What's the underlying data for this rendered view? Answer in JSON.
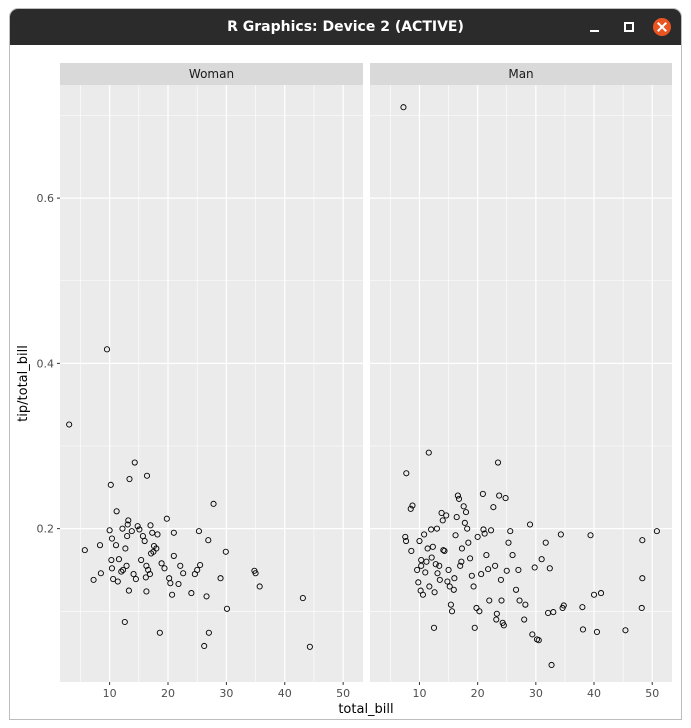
{
  "window": {
    "title": "R Graphics: Device 2 (ACTIVE)"
  },
  "chart_data": {
    "type": "scatter",
    "xlabel": "total_bill",
    "ylabel": "tip/total_bill",
    "xlim": [
      1.5,
      53.4
    ],
    "ylim": [
      0.0144,
      0.7369
    ],
    "x_ticks": [
      10,
      20,
      30,
      40,
      50
    ],
    "y_ticks": [
      0.2,
      0.4,
      0.6
    ],
    "y_tick_labels": [
      "0.2",
      "0.4",
      "0.6"
    ],
    "grid": true,
    "colors": {
      "panel_bg": "#ebebeb",
      "strip_bg": "#d9d9d9",
      "grid": "#ffffff",
      "point": "#000000"
    },
    "facets": [
      {
        "label": "Woman",
        "points": [
          [
            3.07,
            0.326
          ],
          [
            5.75,
            0.174
          ],
          [
            7.25,
            0.138
          ],
          [
            8.35,
            0.18
          ],
          [
            8.5,
            0.146
          ],
          [
            9.55,
            0.417
          ],
          [
            10.0,
            0.198
          ],
          [
            10.2,
            0.253
          ],
          [
            10.4,
            0.188
          ],
          [
            10.3,
            0.162
          ],
          [
            10.4,
            0.152
          ],
          [
            10.6,
            0.139
          ],
          [
            11.1,
            0.18
          ],
          [
            11.2,
            0.221
          ],
          [
            11.4,
            0.136
          ],
          [
            11.6,
            0.163
          ],
          [
            12.0,
            0.148
          ],
          [
            12.2,
            0.2
          ],
          [
            12.3,
            0.15
          ],
          [
            12.6,
            0.087
          ],
          [
            12.7,
            0.176
          ],
          [
            12.9,
            0.155
          ],
          [
            13.0,
            0.191
          ],
          [
            13.1,
            0.205
          ],
          [
            13.2,
            0.21
          ],
          [
            13.3,
            0.125
          ],
          [
            13.4,
            0.26
          ],
          [
            13.8,
            0.197
          ],
          [
            14.1,
            0.145
          ],
          [
            14.3,
            0.28
          ],
          [
            14.5,
            0.139
          ],
          [
            14.8,
            0.203
          ],
          [
            15.1,
            0.199
          ],
          [
            15.4,
            0.162
          ],
          [
            15.7,
            0.191
          ],
          [
            16.0,
            0.185
          ],
          [
            16.2,
            0.141
          ],
          [
            16.3,
            0.155
          ],
          [
            16.3,
            0.124
          ],
          [
            16.4,
            0.264
          ],
          [
            16.6,
            0.15
          ],
          [
            16.9,
            0.145
          ],
          [
            17.0,
            0.204
          ],
          [
            17.1,
            0.17
          ],
          [
            17.3,
            0.195
          ],
          [
            17.5,
            0.172
          ],
          [
            17.6,
            0.179
          ],
          [
            18.0,
            0.176
          ],
          [
            18.2,
            0.193
          ],
          [
            18.6,
            0.074
          ],
          [
            18.9,
            0.158
          ],
          [
            19.4,
            0.152
          ],
          [
            19.8,
            0.212
          ],
          [
            20.2,
            0.14
          ],
          [
            20.4,
            0.134
          ],
          [
            20.7,
            0.12
          ],
          [
            21.0,
            0.167
          ],
          [
            21.0,
            0.195
          ],
          [
            21.8,
            0.133
          ],
          [
            22.1,
            0.155
          ],
          [
            22.6,
            0.146
          ],
          [
            24.0,
            0.122
          ],
          [
            24.6,
            0.145
          ],
          [
            25.0,
            0.15
          ],
          [
            25.3,
            0.197
          ],
          [
            25.5,
            0.156
          ],
          [
            26.2,
            0.058
          ],
          [
            26.6,
            0.118
          ],
          [
            26.9,
            0.186
          ],
          [
            27.0,
            0.074
          ],
          [
            27.8,
            0.23
          ],
          [
            29.0,
            0.14
          ],
          [
            29.9,
            0.172
          ],
          [
            30.1,
            0.103
          ],
          [
            34.8,
            0.149
          ],
          [
            35.0,
            0.146
          ],
          [
            35.7,
            0.13
          ],
          [
            43.1,
            0.116
          ],
          [
            44.3,
            0.057
          ]
        ]
      },
      {
        "label": "Man",
        "points": [
          [
            7.25,
            0.71
          ],
          [
            7.74,
            0.267
          ],
          [
            7.56,
            0.19
          ],
          [
            7.7,
            0.185
          ],
          [
            8.5,
            0.224
          ],
          [
            8.8,
            0.228
          ],
          [
            8.6,
            0.173
          ],
          [
            9.6,
            0.15
          ],
          [
            9.8,
            0.135
          ],
          [
            10.0,
            0.185
          ],
          [
            10.2,
            0.125
          ],
          [
            10.3,
            0.162
          ],
          [
            10.3,
            0.155
          ],
          [
            10.6,
            0.12
          ],
          [
            10.8,
            0.193
          ],
          [
            11.0,
            0.147
          ],
          [
            11.2,
            0.16
          ],
          [
            11.4,
            0.176
          ],
          [
            11.6,
            0.292
          ],
          [
            11.7,
            0.13
          ],
          [
            12.0,
            0.199
          ],
          [
            12.1,
            0.165
          ],
          [
            12.3,
            0.178
          ],
          [
            12.5,
            0.08
          ],
          [
            12.6,
            0.123
          ],
          [
            12.8,
            0.157
          ],
          [
            13.0,
            0.2
          ],
          [
            13.1,
            0.146
          ],
          [
            13.4,
            0.155
          ],
          [
            13.5,
            0.138
          ],
          [
            13.8,
            0.219
          ],
          [
            14.0,
            0.21
          ],
          [
            14.1,
            0.174
          ],
          [
            14.3,
            0.173
          ],
          [
            14.6,
            0.216
          ],
          [
            14.8,
            0.136
          ],
          [
            15.0,
            0.15
          ],
          [
            15.2,
            0.13
          ],
          [
            15.4,
            0.108
          ],
          [
            15.6,
            0.1
          ],
          [
            15.9,
            0.126
          ],
          [
            16.0,
            0.14
          ],
          [
            16.2,
            0.192
          ],
          [
            16.4,
            0.214
          ],
          [
            16.6,
            0.24
          ],
          [
            16.8,
            0.236
          ],
          [
            17.0,
            0.155
          ],
          [
            17.2,
            0.16
          ],
          [
            17.3,
            0.176
          ],
          [
            17.6,
            0.227
          ],
          [
            17.8,
            0.207
          ],
          [
            18.0,
            0.22
          ],
          [
            18.2,
            0.2
          ],
          [
            18.4,
            0.183
          ],
          [
            18.7,
            0.164
          ],
          [
            19.0,
            0.143
          ],
          [
            19.3,
            0.13
          ],
          [
            19.5,
            0.08
          ],
          [
            19.8,
            0.104
          ],
          [
            20.0,
            0.19
          ],
          [
            20.3,
            0.1
          ],
          [
            20.6,
            0.145
          ],
          [
            20.9,
            0.242
          ],
          [
            21.0,
            0.199
          ],
          [
            21.2,
            0.194
          ],
          [
            21.5,
            0.168
          ],
          [
            21.8,
            0.151
          ],
          [
            22.0,
            0.113
          ],
          [
            22.3,
            0.198
          ],
          [
            22.7,
            0.226
          ],
          [
            23.0,
            0.155
          ],
          [
            23.2,
            0.09
          ],
          [
            23.3,
            0.097
          ],
          [
            23.5,
            0.28
          ],
          [
            23.7,
            0.24
          ],
          [
            24.0,
            0.138
          ],
          [
            24.1,
            0.113
          ],
          [
            24.3,
            0.086
          ],
          [
            24.5,
            0.083
          ],
          [
            24.8,
            0.237
          ],
          [
            25.0,
            0.149
          ],
          [
            25.3,
            0.183
          ],
          [
            25.6,
            0.197
          ],
          [
            26.0,
            0.168
          ],
          [
            26.6,
            0.126
          ],
          [
            27.0,
            0.15
          ],
          [
            27.2,
            0.113
          ],
          [
            28.0,
            0.09
          ],
          [
            28.2,
            0.108
          ],
          [
            29.0,
            0.205
          ],
          [
            29.4,
            0.072
          ],
          [
            29.8,
            0.153
          ],
          [
            30.2,
            0.066
          ],
          [
            30.5,
            0.065
          ],
          [
            31.0,
            0.163
          ],
          [
            31.7,
            0.183
          ],
          [
            32.1,
            0.098
          ],
          [
            32.4,
            0.152
          ],
          [
            32.7,
            0.035
          ],
          [
            33.0,
            0.099
          ],
          [
            34.3,
            0.193
          ],
          [
            34.6,
            0.104
          ],
          [
            34.8,
            0.107
          ],
          [
            38.0,
            0.105
          ],
          [
            38.1,
            0.078
          ],
          [
            39.4,
            0.192
          ],
          [
            40.0,
            0.12
          ],
          [
            40.5,
            0.075
          ],
          [
            41.2,
            0.122
          ],
          [
            45.4,
            0.077
          ],
          [
            48.2,
            0.104
          ],
          [
            48.3,
            0.14
          ],
          [
            48.3,
            0.186
          ],
          [
            50.8,
            0.197
          ]
        ]
      }
    ]
  }
}
